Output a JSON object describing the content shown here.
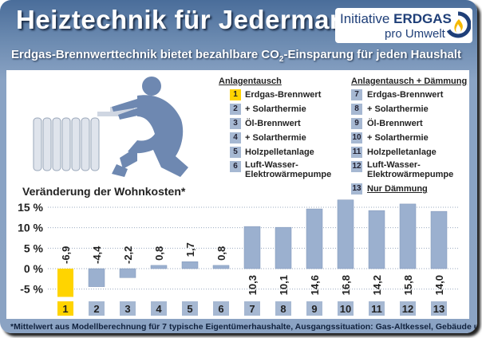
{
  "header": {
    "title": "Heiztechnik für Jedermann",
    "subtitle_pre": "Erdgas-Brennwerttechnik bietet bezahlbare CO",
    "subtitle_sub": "2",
    "subtitle_post": "-Einsparung für jeden Haushalt"
  },
  "logo": {
    "initiative": "Initiative",
    "brand": "ERDGAS",
    "tagline": "pro Umwelt"
  },
  "legend": {
    "group1_title": "Anlagentausch",
    "group2_title": "Anlagentausch + Dämmung",
    "items": [
      {
        "num": "1",
        "label": "Erdgas-Brennwert"
      },
      {
        "num": "2",
        "label": "+ Solarthermie"
      },
      {
        "num": "3",
        "label": "Öl-Brennwert"
      },
      {
        "num": "4",
        "label": "+ Solarthermie"
      },
      {
        "num": "5",
        "label": "Holzpelletanlage"
      },
      {
        "num": "6",
        "label": "Luft-Wasser-",
        "label2": "Elektrowärmepumpe"
      },
      {
        "num": "7",
        "label": "Erdgas-Brennwert"
      },
      {
        "num": "8",
        "label": "+ Solarthermie"
      },
      {
        "num": "9",
        "label": "Öl-Brennwert"
      },
      {
        "num": "10",
        "label": "+ Solarthermie"
      },
      {
        "num": "11",
        "label": "Holzpelletanlage"
      },
      {
        "num": "12",
        "label": "Luft-Wasser-",
        "label2": "Elektrowärmepumpe"
      },
      {
        "num": "13",
        "label": "Nur Dämmung"
      }
    ]
  },
  "chart_data": {
    "type": "bar",
    "title": "Veränderung der Wohnkosten*",
    "categories": [
      "1",
      "2",
      "3",
      "4",
      "5",
      "6",
      "7",
      "8",
      "9",
      "10",
      "11",
      "12",
      "13"
    ],
    "values": [
      -6.9,
      -4.4,
      -2.2,
      0.8,
      1.7,
      0.8,
      10.3,
      10.1,
      14.6,
      16.8,
      14.2,
      15.8,
      14.0
    ],
    "value_labels": [
      "-6,9",
      "-4,4",
      "-2,2",
      "0,8",
      "1,7",
      "0,8",
      "10,3",
      "10,1",
      "14,6",
      "16,8",
      "14,2",
      "15,8",
      "14,0"
    ],
    "yticks": [
      "15 %",
      "10 %",
      "5 %",
      "0 %",
      "-5 %"
    ],
    "ytick_values": [
      15,
      10,
      5,
      0,
      -5
    ],
    "ylim": [
      -7.5,
      17
    ],
    "highlight_category": "1",
    "colors": {
      "highlight": "#ffd400",
      "bar": "#9bb0cf",
      "label_box": "#a6b8d2",
      "highlight_box": "#ffd400"
    },
    "grid": "horizontal-dotted"
  },
  "footnote": "*Mittelwert aus Modellberechnung für 7 typische Eigentümerhaushalte, Ausgangssituation: Gas-Altkessel, Gebäude ungedämmt"
}
